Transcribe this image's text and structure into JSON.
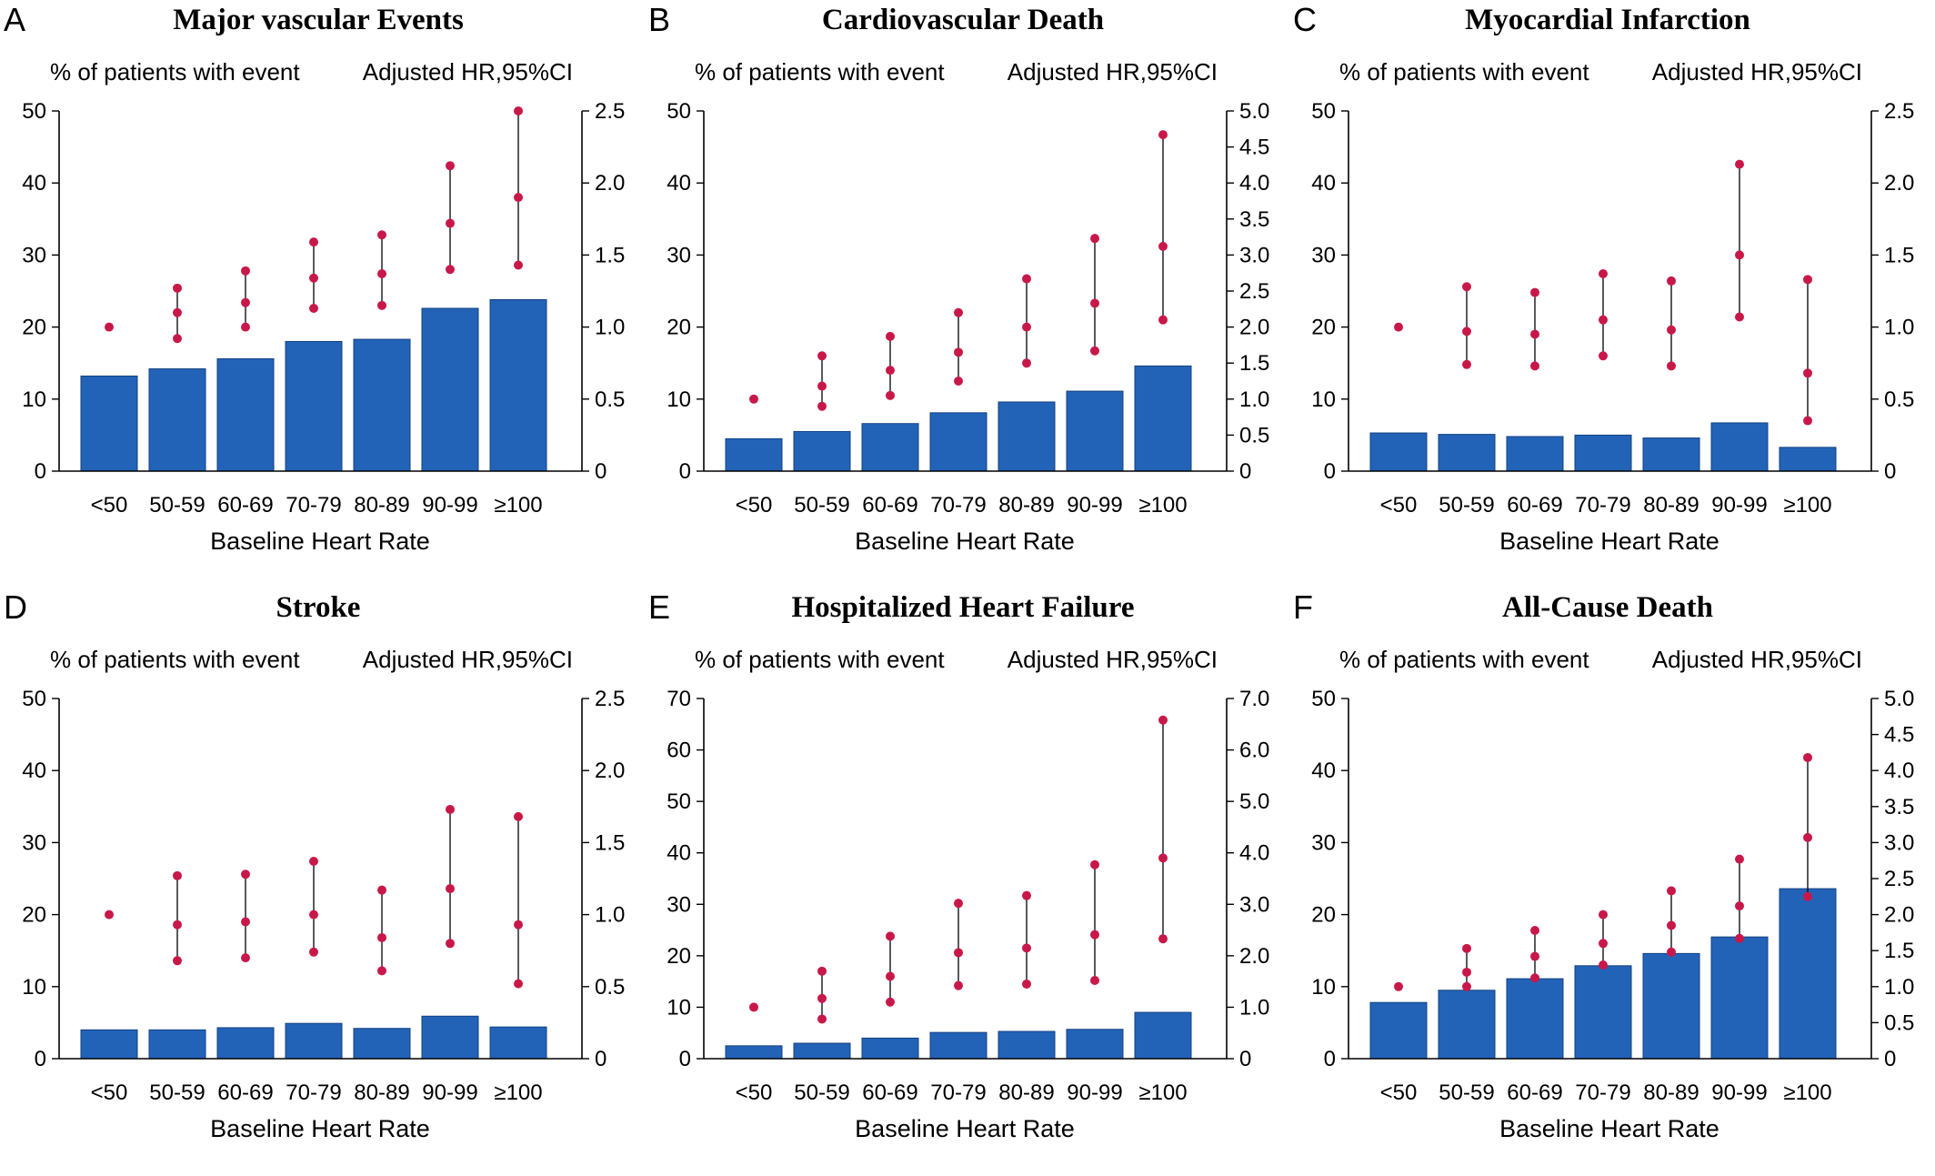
{
  "x_axis_label": "Baseline Heart Rate",
  "left_axis_caption": "% of patients with event",
  "right_axis_caption": "Adjusted HR,95%CI",
  "colors": {
    "bar": "#2263b8",
    "marker": "#c8184a",
    "ci_line": "#000000"
  },
  "chart_data": [
    {
      "type": "bar",
      "panel_letter": "A",
      "title": "Major vascular Events",
      "categories": [
        "<50",
        "50-59",
        "60-69",
        "70-79",
        "80-89",
        "90-99",
        "≥100"
      ],
      "xlabel": "Baseline Heart Rate",
      "ylabel": "% of patients with event",
      "y2label": "Adjusted HR,95%CI",
      "ylim": [
        0,
        50
      ],
      "yticks": [
        "0",
        "10",
        "20",
        "30",
        "40",
        "50"
      ],
      "y2lim": [
        0,
        2.5
      ],
      "y2ticks": [
        "0",
        "0.5",
        "1.0",
        "1.5",
        "2.0",
        "2.5"
      ],
      "series": [
        {
          "name": "% of patients with event",
          "values": [
            13.2,
            14.2,
            15.6,
            18.0,
            18.3,
            22.6,
            23.8
          ]
        },
        {
          "name": "Adjusted HR,95%CI",
          "hr": [
            1.0,
            1.1,
            1.17,
            1.34,
            1.37,
            1.72,
            1.9
          ],
          "lower": [
            null,
            0.92,
            1.0,
            1.13,
            1.15,
            1.4,
            1.43
          ],
          "upper": [
            null,
            1.27,
            1.39,
            1.59,
            1.64,
            2.12,
            2.5
          ]
        }
      ]
    },
    {
      "type": "bar",
      "panel_letter": "B",
      "title": "Cardiovascular Death",
      "categories": [
        "<50",
        "50-59",
        "60-69",
        "70-79",
        "80-89",
        "90-99",
        "≥100"
      ],
      "xlabel": "Baseline Heart Rate",
      "ylabel": "% of patients with event",
      "y2label": "Adjusted HR,95%CI",
      "ylim": [
        0,
        50
      ],
      "yticks": [
        "0",
        "10",
        "20",
        "30",
        "40",
        "50"
      ],
      "y2lim": [
        0,
        5.0
      ],
      "y2ticks": [
        "0",
        "0.5",
        "1.0",
        "1.5",
        "2.0",
        "2.5",
        "3.0",
        "3.5",
        "4.0",
        "4.5",
        "5.0"
      ],
      "series": [
        {
          "name": "% of patients with event",
          "values": [
            4.5,
            5.5,
            6.6,
            8.1,
            9.6,
            11.1,
            14.6
          ]
        },
        {
          "name": "Adjusted HR,95%CI",
          "hr": [
            1.0,
            1.18,
            1.4,
            1.65,
            2.0,
            2.33,
            3.12
          ],
          "lower": [
            null,
            0.9,
            1.05,
            1.25,
            1.5,
            1.67,
            2.1
          ],
          "upper": [
            null,
            1.6,
            1.87,
            2.2,
            2.67,
            3.23,
            4.67
          ]
        }
      ]
    },
    {
      "type": "bar",
      "panel_letter": "C",
      "title": "Myocardial Infarction",
      "categories": [
        "<50",
        "50-59",
        "60-69",
        "70-79",
        "80-89",
        "90-99",
        "≥100"
      ],
      "xlabel": "Baseline Heart Rate",
      "ylabel": "% of patients with event",
      "y2label": "Adjusted HR,95%CI",
      "ylim": [
        0,
        50
      ],
      "yticks": [
        "0",
        "10",
        "20",
        "30",
        "40",
        "50"
      ],
      "y2lim": [
        0,
        2.5
      ],
      "y2ticks": [
        "0",
        "0.5",
        "1.0",
        "1.5",
        "2.0",
        "2.5"
      ],
      "series": [
        {
          "name": "% of patients with event",
          "values": [
            5.3,
            5.1,
            4.8,
            5.0,
            4.6,
            6.7,
            3.3
          ]
        },
        {
          "name": "Adjusted HR,95%CI",
          "hr": [
            1.0,
            0.97,
            0.95,
            1.05,
            0.98,
            1.5,
            0.68
          ],
          "lower": [
            null,
            0.74,
            0.73,
            0.8,
            0.73,
            1.07,
            0.35
          ],
          "upper": [
            null,
            1.28,
            1.24,
            1.37,
            1.32,
            2.13,
            1.33
          ]
        }
      ]
    },
    {
      "type": "bar",
      "panel_letter": "D",
      "title": "Stroke",
      "categories": [
        "<50",
        "50-59",
        "60-69",
        "70-79",
        "80-89",
        "90-99",
        "≥100"
      ],
      "xlabel": "Baseline Heart Rate",
      "ylabel": "% of patients with event",
      "y2label": "Adjusted HR,95%CI",
      "ylim": [
        0,
        50
      ],
      "yticks": [
        "0",
        "10",
        "20",
        "30",
        "40",
        "50"
      ],
      "y2lim": [
        0,
        2.5
      ],
      "y2ticks": [
        "0",
        "0.5",
        "1.0",
        "1.5",
        "2.0",
        "2.5"
      ],
      "series": [
        {
          "name": "% of patients with event",
          "values": [
            4.0,
            4.0,
            4.3,
            4.9,
            4.2,
            5.9,
            4.4
          ]
        },
        {
          "name": "Adjusted HR,95%CI",
          "hr": [
            1.0,
            0.93,
            0.95,
            1.0,
            0.84,
            1.18,
            0.93
          ],
          "lower": [
            null,
            0.68,
            0.7,
            0.74,
            0.61,
            0.8,
            0.52
          ],
          "upper": [
            null,
            1.27,
            1.28,
            1.37,
            1.17,
            1.73,
            1.68
          ]
        }
      ]
    },
    {
      "type": "bar",
      "panel_letter": "E",
      "title": "Hospitalized Heart Failure",
      "categories": [
        "<50",
        "50-59",
        "60-69",
        "70-79",
        "80-89",
        "90-99",
        "≥100"
      ],
      "xlabel": "Baseline Heart Rate",
      "ylabel": "% of patients with event",
      "y2label": "Adjusted HR,95%CI",
      "ylim": [
        0,
        70
      ],
      "yticks": [
        "0",
        "10",
        "20",
        "30",
        "40",
        "50",
        "60",
        "70"
      ],
      "y2lim": [
        0,
        7.0
      ],
      "y2ticks": [
        "0",
        "1.0",
        "2.0",
        "3.0",
        "4.0",
        "5.0",
        "6.0",
        "7.0"
      ],
      "series": [
        {
          "name": "% of patients with event",
          "values": [
            2.5,
            3.0,
            4.0,
            5.1,
            5.3,
            5.7,
            9.0
          ]
        },
        {
          "name": "Adjusted HR,95%CI",
          "hr": [
            1.0,
            1.17,
            1.6,
            2.06,
            2.15,
            2.41,
            3.9
          ],
          "lower": [
            null,
            0.77,
            1.1,
            1.42,
            1.45,
            1.52,
            2.33
          ],
          "upper": [
            null,
            1.7,
            2.38,
            3.02,
            3.17,
            3.77,
            6.58
          ]
        }
      ]
    },
    {
      "type": "bar",
      "panel_letter": "F",
      "title": "All-Cause Death",
      "categories": [
        "<50",
        "50-59",
        "60-69",
        "70-79",
        "80-89",
        "90-99",
        "≥100"
      ],
      "xlabel": "Baseline Heart Rate",
      "ylabel": "% of patients with event",
      "y2label": "Adjusted HR,95%CI",
      "ylim": [
        0,
        50
      ],
      "yticks": [
        "0",
        "10",
        "20",
        "30",
        "40",
        "50"
      ],
      "y2lim": [
        0,
        5.0
      ],
      "y2ticks": [
        "0",
        "0.5",
        "1.0",
        "1.5",
        "2.0",
        "2.5",
        "3.0",
        "3.5",
        "4.0",
        "4.5",
        "5.0"
      ],
      "series": [
        {
          "name": "% of patients with event",
          "values": [
            7.8,
            9.5,
            11.1,
            12.9,
            14.6,
            16.9,
            23.6
          ]
        },
        {
          "name": "Adjusted HR,95%CI",
          "hr": [
            1.0,
            1.2,
            1.42,
            1.6,
            1.85,
            2.12,
            3.07
          ],
          "lower": [
            null,
            1.0,
            1.12,
            1.3,
            1.48,
            1.67,
            2.25
          ],
          "upper": [
            null,
            1.53,
            1.78,
            2.0,
            2.33,
            2.77,
            4.18
          ]
        }
      ]
    }
  ]
}
